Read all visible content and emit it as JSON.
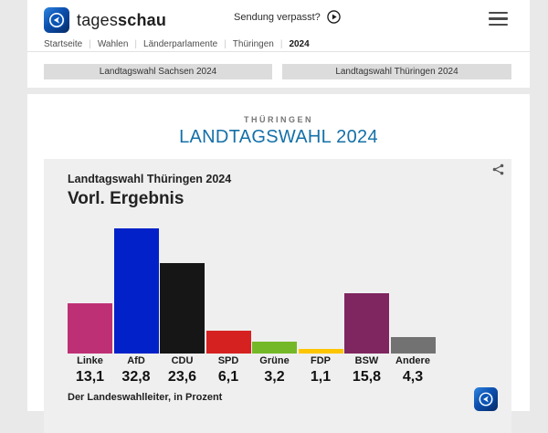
{
  "header": {
    "brand": {
      "part1": "tages",
      "part2": "schau"
    },
    "sendung_verpasst_label": "Sendung verpasst?",
    "breadcrumb": [
      "Startseite",
      "Wahlen",
      "Länderparlamente",
      "Thüringen",
      "2024"
    ],
    "tabs": [
      {
        "label": "Landtagswahl Sachsen 2024"
      },
      {
        "label": "Landtagswahl Thüringen 2024"
      }
    ]
  },
  "page": {
    "kicker": "THÜRINGEN",
    "title": "LANDTAGSWAHL 2024"
  },
  "chart_card": {
    "title": "Landtagswahl Thüringen 2024",
    "subtitle": "Vorl. Ergebnis",
    "source": "Der Landeswahlleiter, in Prozent"
  },
  "chart_data": {
    "type": "bar",
    "title": "Landtagswahl Thüringen 2024 — Vorl. Ergebnis",
    "categories": [
      "Linke",
      "AfD",
      "CDU",
      "SPD",
      "Grüne",
      "FDP",
      "BSW",
      "Andere"
    ],
    "values": [
      13.1,
      32.8,
      23.6,
      6.1,
      3.2,
      1.1,
      15.8,
      4.3
    ],
    "value_labels": [
      "13,1",
      "32,8",
      "23,6",
      "6,1",
      "3,2",
      "1,1",
      "15,8",
      "4,3"
    ],
    "bar_colors": [
      "#be3075",
      "#0221c8",
      "#161616",
      "#d52221",
      "#74b827",
      "#fdc500",
      "#7f2560",
      "#727272"
    ],
    "unit": "percent",
    "ylim": [
      0,
      33.5
    ],
    "grid": false,
    "legend": false,
    "source": "Der Landeswahlleiter, in Prozent"
  },
  "icons": {
    "logo": "tagesschau-globe",
    "play": "play-circle",
    "menu": "hamburger",
    "share": "share-nodes"
  },
  "colors": {
    "accent_blue": "#1470a8",
    "page_bg": "#e9e9e9",
    "card_bg": "#efefef",
    "tab_bg": "#dcdcdc"
  }
}
